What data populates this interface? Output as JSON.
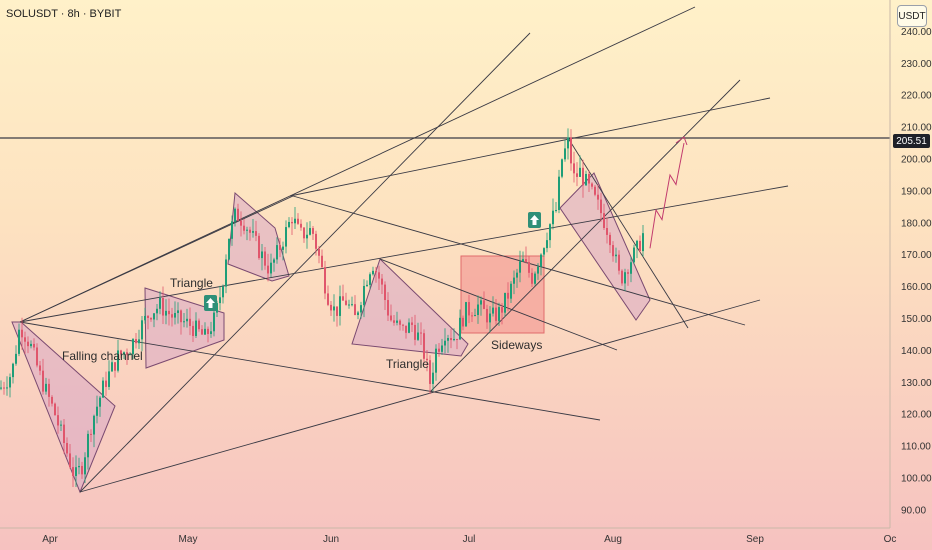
{
  "header": {
    "symbol_line": "SOLUSDT · 8h · BYBIT"
  },
  "currency_button": "USDT",
  "price_badge": "205.51",
  "colors": {
    "candle_up": "#1e9e78",
    "candle_down": "#e0566c",
    "pattern_fill": "#d9a8c4",
    "pattern_stroke": "#7a4a70",
    "sideways_fill": "#f4a09a",
    "sideways_stroke": "#e06b6b",
    "line": "#3a3a44",
    "arrow_badge": "#2f8f78"
  },
  "chart_data": {
    "type": "candlestick",
    "y_axis": {
      "min": 90,
      "max": 240,
      "ticks": [
        "90.00",
        "100.00",
        "110.00",
        "120.00",
        "130.00",
        "140.00",
        "150.00",
        "160.00",
        "170.00",
        "180.00",
        "190.00",
        "200.00",
        "210.00",
        "220.00",
        "230.00",
        "240.00"
      ]
    },
    "x_axis": {
      "tick_labels": [
        "Apr",
        "May",
        "Jun",
        "Jul",
        "Aug",
        "Sep",
        "Oc"
      ]
    },
    "horizontal_line": 205.51,
    "annotations": [
      "Falling channel",
      "Triangle",
      "Triangle",
      "Sideways"
    ],
    "price_path": [
      [
        0,
        128
      ],
      [
        12,
        133
      ],
      [
        20,
        148
      ],
      [
        30,
        142
      ],
      [
        40,
        132
      ],
      [
        55,
        120
      ],
      [
        65,
        110
      ],
      [
        75,
        100
      ],
      [
        82,
        104
      ],
      [
        92,
        118
      ],
      [
        105,
        130
      ],
      [
        118,
        138
      ],
      [
        130,
        141
      ],
      [
        140,
        147
      ],
      [
        150,
        152
      ],
      [
        160,
        154
      ],
      [
        175,
        150
      ],
      [
        190,
        148
      ],
      [
        205,
        144
      ],
      [
        215,
        150
      ],
      [
        222,
        160
      ],
      [
        228,
        175
      ],
      [
        236,
        183
      ],
      [
        245,
        180
      ],
      [
        258,
        172
      ],
      [
        270,
        165
      ],
      [
        282,
        174
      ],
      [
        292,
        182
      ],
      [
        300,
        176
      ],
      [
        312,
        178
      ],
      [
        320,
        168
      ],
      [
        327,
        158
      ],
      [
        335,
        152
      ],
      [
        345,
        156
      ],
      [
        355,
        150
      ],
      [
        362,
        158
      ],
      [
        372,
        168
      ],
      [
        380,
        162
      ],
      [
        390,
        150
      ],
      [
        402,
        146
      ],
      [
        412,
        148
      ],
      [
        422,
        142
      ],
      [
        430,
        130
      ],
      [
        436,
        140
      ],
      [
        445,
        146
      ],
      [
        455,
        144
      ],
      [
        465,
        152
      ],
      [
        478,
        154
      ],
      [
        490,
        150
      ],
      [
        500,
        152
      ],
      [
        512,
        160
      ],
      [
        522,
        168
      ],
      [
        532,
        163
      ],
      [
        540,
        170
      ],
      [
        548,
        178
      ],
      [
        556,
        184
      ],
      [
        562,
        200
      ],
      [
        568,
        205
      ],
      [
        574,
        194
      ],
      [
        580,
        196
      ],
      [
        590,
        190
      ],
      [
        600,
        184
      ],
      [
        610,
        176
      ],
      [
        620,
        162
      ],
      [
        628,
        167
      ],
      [
        638,
        172
      ],
      [
        645,
        178
      ]
    ],
    "projection_path": [
      [
        650,
        172
      ],
      [
        656,
        184
      ],
      [
        662,
        181
      ],
      [
        670,
        195
      ],
      [
        676,
        192
      ],
      [
        684,
        205
      ]
    ]
  }
}
